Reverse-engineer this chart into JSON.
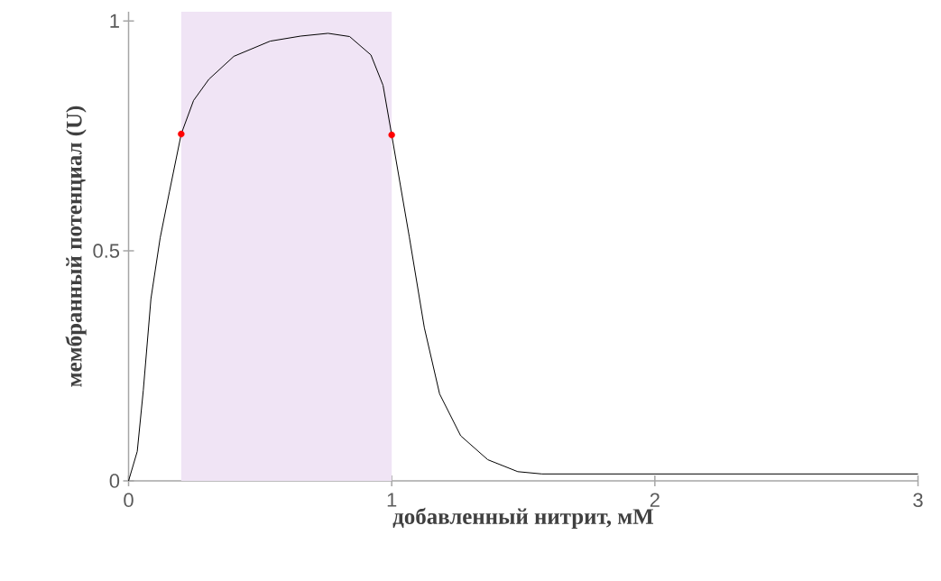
{
  "chart_data": {
    "type": "line",
    "xlabel": "добавленный нитрит, мМ",
    "ylabel": "мембранный потенциал (U)",
    "xlim": [
      0,
      3
    ],
    "ylim": [
      0,
      1.02
    ],
    "xticks": [
      0,
      1,
      2,
      3
    ],
    "yticks": [
      0,
      {
        "value": 0.5,
        "label": "0.5"
      },
      1
    ],
    "series": [
      {
        "color": "#000000",
        "marker": "none",
        "x": [
          0,
          0.033,
          0.056,
          0.085,
          0.12,
          0.155,
          0.2,
          0.247,
          0.305,
          0.4,
          0.538,
          0.654,
          0.758,
          0.84,
          0.921,
          0.967,
          1.0,
          1.067,
          1.124,
          1.182,
          1.262,
          1.365,
          1.479,
          1.571,
          1.7,
          2.0,
          2.5,
          3.0
        ],
        "values": [
          0,
          0.064,
          0.197,
          0.396,
          0.528,
          0.628,
          0.754,
          0.827,
          0.873,
          0.923,
          0.956,
          0.967,
          0.973,
          0.966,
          0.926,
          0.86,
          0.752,
          0.53,
          0.333,
          0.189,
          0.098,
          0.046,
          0.02,
          0.015,
          0.015,
          0.015,
          0.015,
          0.015
        ]
      },
      {
        "type": "scatter",
        "color": "#ff0000",
        "marker": "circle",
        "x": [
          0.2,
          1.0
        ],
        "values": [
          0.754,
          0.752
        ]
      }
    ],
    "bands": [
      {
        "axis": "x",
        "from": 0.2,
        "to": 1.0,
        "color": "#f0e4f5"
      }
    ]
  }
}
